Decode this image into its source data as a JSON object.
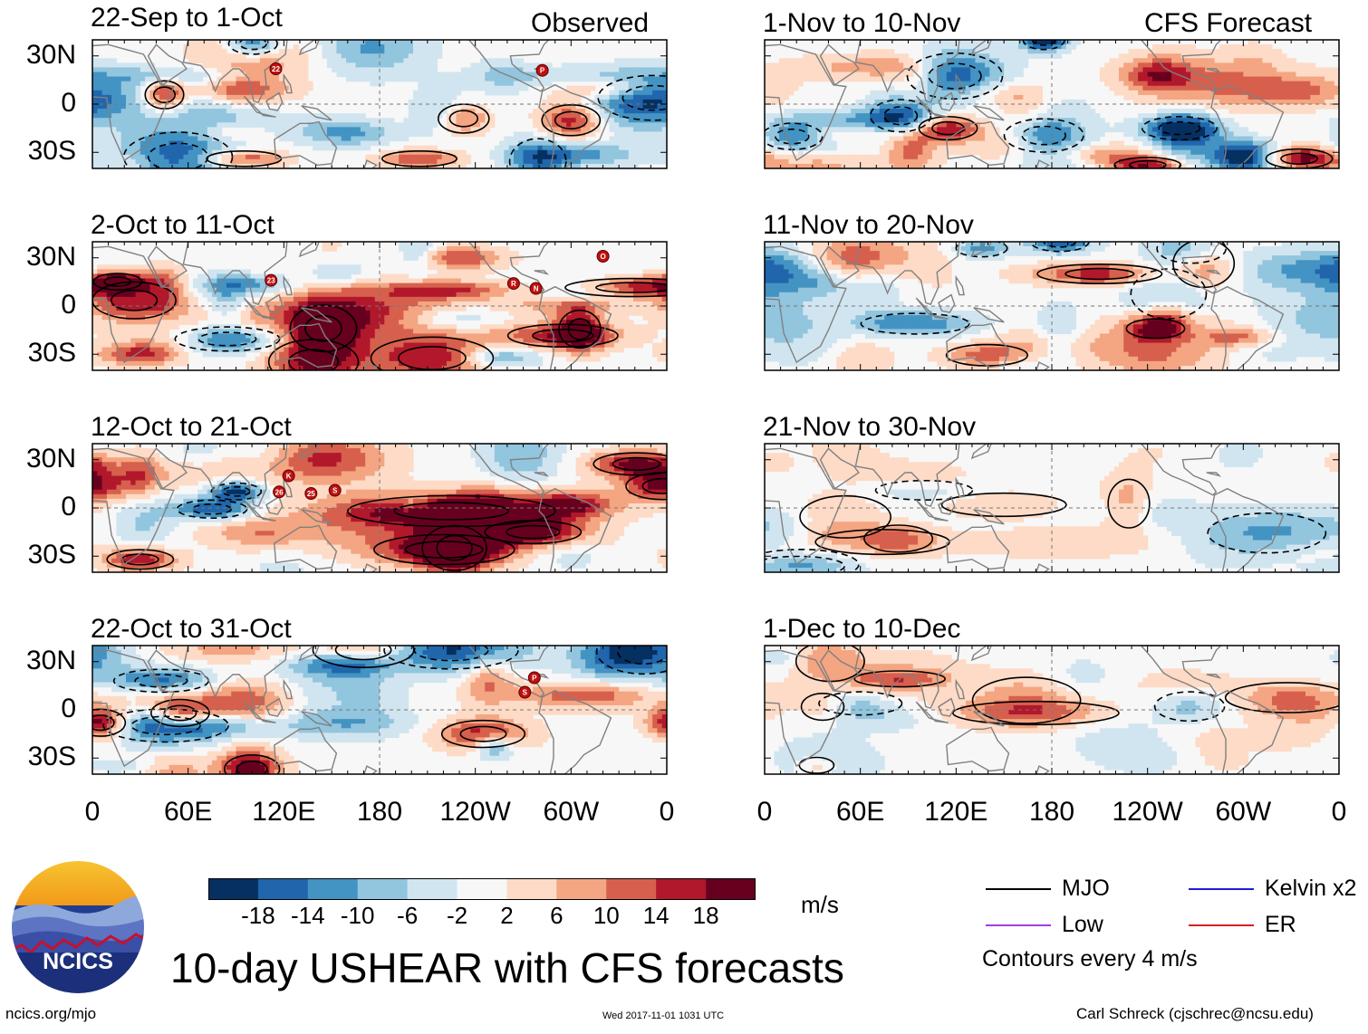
{
  "figure": {
    "main_title": "10-day USHEAR with CFS forecasts",
    "left_column_header": "Observed",
    "right_column_header": "CFS Forecast",
    "website": "ncics.org/mjo",
    "timestamp": "Wed 2017-11-01 1031 UTC",
    "author": "Carl Schreck (cjschrec@ncsu.edu)",
    "logo_text": "NCICS",
    "units": "m/s",
    "contour_note": "Contours every 4 m/s"
  },
  "chart_data": {
    "type": "heatmap",
    "variable": "10-day USHEAR anomaly",
    "units": "m/s",
    "x_axis": {
      "ticks": [
        "0",
        "60E",
        "120E",
        "180",
        "120W",
        "60W",
        "0"
      ],
      "range_deg_east": [
        0,
        360
      ]
    },
    "y_axis": {
      "ticks": [
        "30N",
        "0",
        "30S"
      ],
      "range_deg": [
        -40,
        40
      ]
    },
    "colorbar": {
      "levels": [
        -18,
        -14,
        -10,
        -6,
        -2,
        2,
        6,
        10,
        14,
        18
      ],
      "labels": [
        "-18",
        "-14",
        "-10",
        "-6",
        "-2",
        "2",
        "6",
        "10",
        "14",
        "18"
      ],
      "colors": [
        "#053061",
        "#2166ac",
        "#4393c3",
        "#92c5de",
        "#d1e5f0",
        "#f7f7f7",
        "#fddbc7",
        "#f4a582",
        "#d6604d",
        "#b2182b",
        "#67001f"
      ]
    },
    "legend": [
      {
        "label": "MJO",
        "color": "#000000"
      },
      {
        "label": "Kelvin x2",
        "color": "#1d1dd6"
      },
      {
        "label": "Low",
        "color": "#a040e0"
      },
      {
        "label": "ER",
        "color": "#d62020"
      }
    ],
    "panels": [
      {
        "title": "22-Sep to 1-Oct",
        "source": "Observed",
        "seed": 11,
        "amp": 1.05,
        "storms": [
          [
            "22",
            115,
            22
          ],
          [
            "P",
            282,
            21
          ]
        ]
      },
      {
        "title": "2-Oct to 11-Oct",
        "source": "Observed",
        "seed": 23,
        "amp": 1.05,
        "storms": [
          [
            "23",
            112,
            16
          ],
          [
            "R",
            264,
            14
          ],
          [
            "N",
            278,
            11
          ],
          [
            "O",
            320,
            31
          ]
        ]
      },
      {
        "title": "12-Oct to 21-Oct",
        "source": "Observed",
        "seed": 37,
        "amp": 1.15,
        "storms": [
          [
            "K",
            123,
            20
          ],
          [
            "26",
            117,
            10
          ],
          [
            "25",
            137,
            9
          ],
          [
            "S",
            152,
            11
          ]
        ]
      },
      {
        "title": "22-Oct to 31-Oct",
        "source": "Observed",
        "seed": 41,
        "amp": 1.05,
        "storms": [
          [
            "P",
            277,
            20
          ],
          [
            "S",
            271,
            11
          ]
        ]
      },
      {
        "title": "1-Nov to 10-Nov",
        "source": "CFS Forecast",
        "seed": 53,
        "amp": 1.0,
        "storms": []
      },
      {
        "title": "11-Nov to 20-Nov",
        "source": "CFS Forecast",
        "seed": 67,
        "amp": 0.8,
        "storms": []
      },
      {
        "title": "21-Nov to 30-Nov",
        "source": "CFS Forecast",
        "seed": 71,
        "amp": 0.45,
        "storms": []
      },
      {
        "title": "1-Dec to 10-Dec",
        "source": "CFS Forecast",
        "seed": 83,
        "amp": 0.5,
        "storms": []
      }
    ]
  }
}
